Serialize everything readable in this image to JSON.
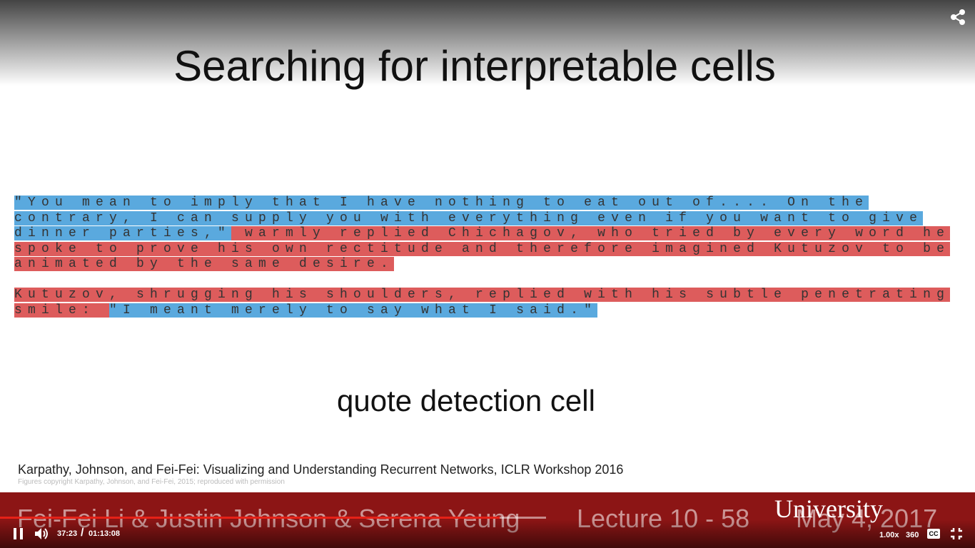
{
  "slide": {
    "title": "Searching for  interpretable cells",
    "paragraphs": [
      {
        "segments": [
          {
            "text": "\"You mean to imply that I have nothing to eat out of.... On the contrary, I can supply you with everything even if you want to give dinner parties,\"",
            "highlight": "#5aa9de"
          },
          {
            "text": " warmly replied Chichagov, who tried by every word he spoke to prove his own rectitude and therefore imagined Kutuzov to be animated by the same desire.",
            "highlight": "#dd5c5c"
          }
        ]
      },
      {
        "segments": [
          {
            "text": "Kutuzov, shrugging his shoulders, replied with his subtle penetrating smile: ",
            "highlight": "#dd5c5c"
          },
          {
            "text": "\"I meant merely to say what I said.\"",
            "highlight": "#5aa9de"
          }
        ]
      }
    ],
    "caption": "quote detection cell",
    "citation": "Karpathy, Johnson, and Fei-Fei: Visualizing and Understanding Recurrent Networks, ICLR Workshop 2016",
    "copyright": "Figures copyright Karpathy, Johnson, and Fei-Fei, 2015; reproduced with permission",
    "footer": {
      "authors": "Fei-Fei Li & Justin Johnson & Serena Yeung",
      "lecture": "Lecture 10 - 58",
      "date": "May 4, 2017",
      "logo": "University"
    }
  },
  "player": {
    "current_time": "37:23",
    "separator": "/",
    "duration": "01:13:08",
    "speed": "1.00x",
    "quality": "360",
    "captions": "CC"
  }
}
